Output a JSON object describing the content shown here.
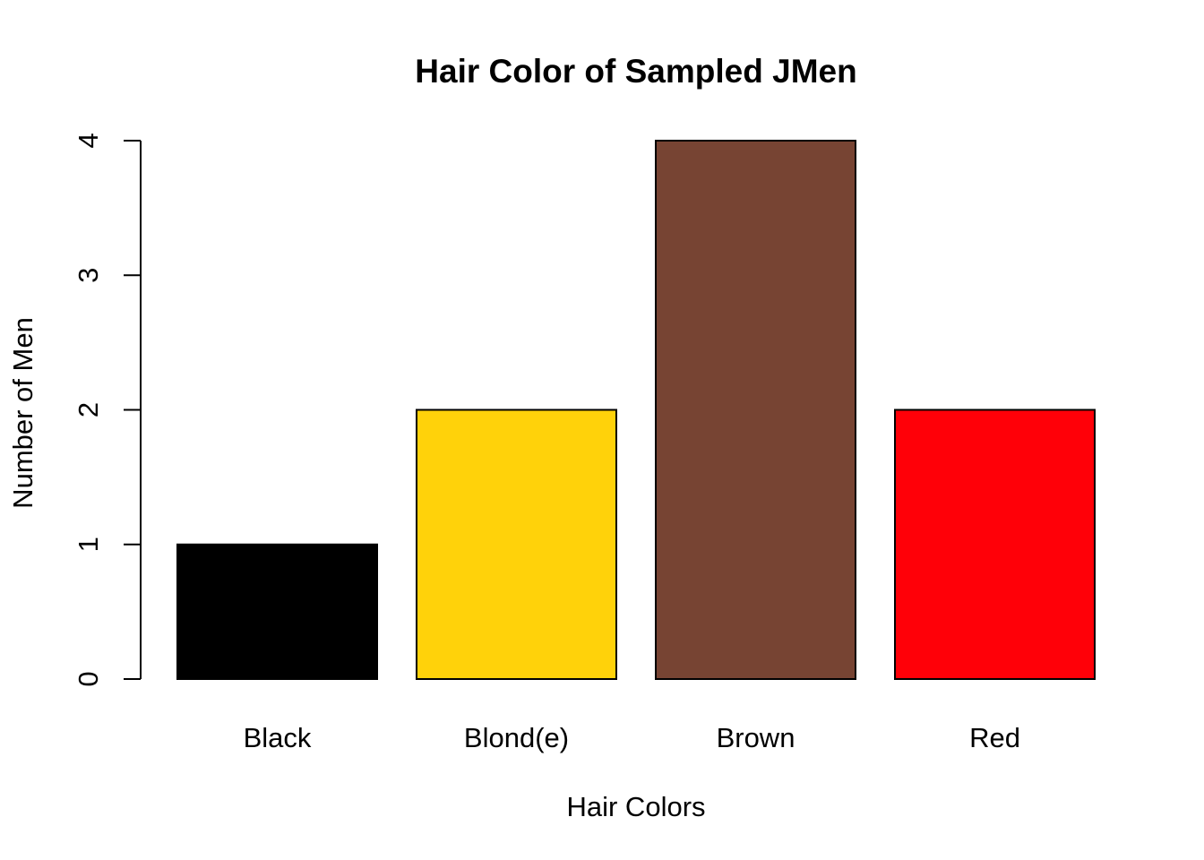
{
  "chart_data": {
    "type": "bar",
    "title": "Hair Color of Sampled JMen",
    "xlabel": "Hair Colors",
    "ylabel": "Number of Men",
    "categories": [
      "Black",
      "Blond(e)",
      "Brown",
      "Red"
    ],
    "values": [
      1,
      2,
      4,
      2
    ],
    "colors": [
      "#000000",
      "#FFD20A",
      "#774433",
      "#FF0008"
    ],
    "ylim": [
      0,
      4
    ],
    "yticks": [
      0,
      1,
      2,
      3,
      4
    ],
    "grid": false,
    "legend": "none"
  }
}
